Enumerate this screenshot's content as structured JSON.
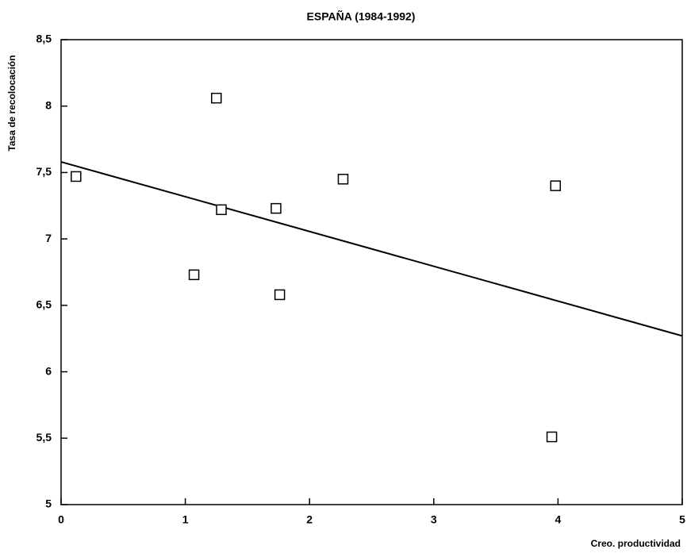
{
  "chart_data": {
    "type": "scatter",
    "title": "ESPAÑA (1984-1992)",
    "xlabel": "Creo. productividad",
    "ylabel": "Tasa de recolocación",
    "x": [
      0.12,
      1.25,
      1.29,
      1.07,
      1.73,
      1.76,
      2.27,
      3.98,
      3.95
    ],
    "values": [
      7.47,
      8.06,
      7.22,
      6.73,
      7.23,
      6.58,
      7.45,
      7.4,
      5.51
    ],
    "color": "#000000",
    "trend": {
      "x": [
        0,
        5
      ],
      "values": [
        7.58,
        6.27
      ]
    },
    "xlim": [
      0,
      5
    ],
    "xticks": [
      0,
      1,
      2,
      3,
      4,
      5
    ],
    "ylim": [
      5,
      8.5
    ],
    "yticks": [
      5,
      {
        "value": 5.5,
        "label": "5,5"
      },
      6,
      {
        "value": 6.5,
        "label": "6,5"
      },
      7,
      {
        "value": 7.5,
        "label": "7,5"
      },
      8,
      {
        "value": 8.5,
        "label": "8,5"
      }
    ]
  }
}
